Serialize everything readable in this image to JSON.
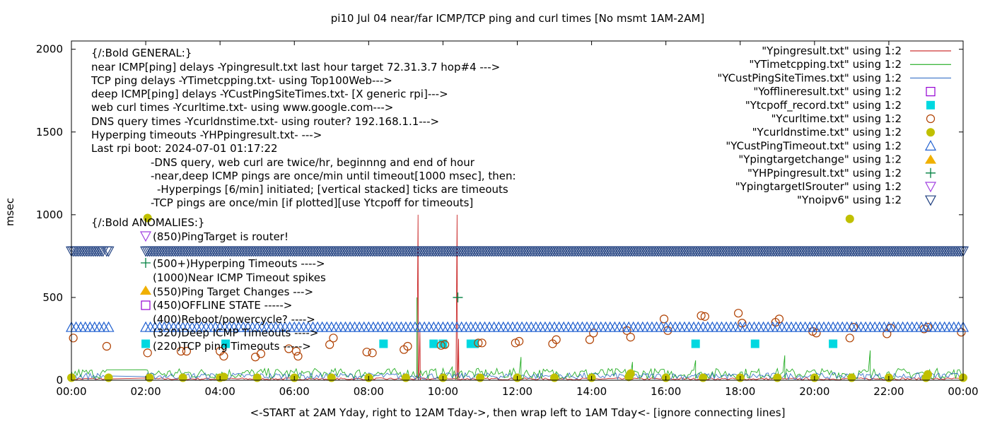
{
  "chart_data": {
    "type": "line",
    "title": "pi10 Jul 04  near/far ICMP/TCP ping and curl times [No msmt 1AM-2AM]",
    "xlabel": "<-START at 2AM Yday, right to 12AM Tday->, then wrap left to 1AM Tday<- [ignore connecting lines]",
    "ylabel": "msec",
    "xlim": [
      0,
      24
    ],
    "ylim": [
      0,
      2050
    ],
    "x_ticks": [
      {
        "v": 0,
        "label": "00:00"
      },
      {
        "v": 2,
        "label": "02:00"
      },
      {
        "v": 4,
        "label": "04:00"
      },
      {
        "v": 6,
        "label": "06:00"
      },
      {
        "v": 8,
        "label": "08:00"
      },
      {
        "v": 10,
        "label": "10:00"
      },
      {
        "v": 12,
        "label": "12:00"
      },
      {
        "v": 14,
        "label": "14:00"
      },
      {
        "v": 16,
        "label": "16:00"
      },
      {
        "v": 18,
        "label": "18:00"
      },
      {
        "v": 20,
        "label": "20:00"
      },
      {
        "v": 22,
        "label": "22:00"
      },
      {
        "v": 24,
        "label": "00:00"
      }
    ],
    "y_ticks": [
      {
        "v": 0,
        "label": "0"
      },
      {
        "v": 500,
        "label": "500"
      },
      {
        "v": 1000,
        "label": "1000"
      },
      {
        "v": 1500,
        "label": "1500"
      },
      {
        "v": 2000,
        "label": "2000"
      }
    ],
    "annotations": [
      "{/:Bold GENERAL:}",
      "near ICMP[ping] delays -Ypingresult.txt last hour target 72.31.3.7 hop#4 --->",
      "TCP ping delays -YTimetcpping.txt- using Top100Web--->",
      "deep ICMP[ping] delays -YCustPingSiteTimes.txt- [X generic rpi]--->",
      "web curl times -Ycurltime.txt- using www.google.com--->",
      "DNS query times -Ycurldnstime.txt- using router? 192.168.1.1--->",
      "Hyperping timeouts -YHPpingresult.txt- --->",
      "Last rpi boot: 2024-07-01 01:17:22",
      "-DNS query, web curl are twice/hr, beginnng and end of hour",
      "-near,deep ICMP pings are once/min until timeout[1000 msec], then:",
      "-Hyperpings [6/min] initiated; [vertical stacked] ticks are timeouts",
      "-TCP pings are once/min [if plotted][use Ytcpoff for timeouts]",
      "{/:Bold ANOMALIES:}",
      "(850)PingTarget is router!",
      "(500+)Hyperping Timeouts ---->",
      "(1000)Near ICMP Timeout spikes",
      "(550)Ping Target Changes --->",
      "(450)OFFLINE STATE ----->",
      "(400)Reboot/powercycle? ---->",
      "(320)Deep ICMP Timeouts ---->",
      "(220)TCP ping Timeouts ----->"
    ],
    "legend": [
      {
        "label": "\"Ypingresult.txt\" using 1:2",
        "symbol": "line",
        "color": "#c00000"
      },
      {
        "label": "\"YTimetcpping.txt\" using 1:2",
        "symbol": "line",
        "color": "#00a000"
      },
      {
        "label": "\"YCustPingSiteTimes.txt\" using 1:2",
        "symbol": "line",
        "color": "#2060c0"
      },
      {
        "label": "\"Yofflineresult.txt\" using 1:2",
        "symbol": "open-square",
        "color": "#9400d3"
      },
      {
        "label": "\"Ytcpoff_record.txt\" using 1:2",
        "symbol": "filled-square",
        "color": "#00d8e0"
      },
      {
        "label": "\"Ycurltime.txt\" using 1:2",
        "symbol": "open-circle",
        "color": "#b04000"
      },
      {
        "label": "\"Ycurldnstime.txt\" using 1:2",
        "symbol": "filled-circle",
        "color": "#c0c000"
      },
      {
        "label": "\"YCustPingTimeout.txt\" using 1:2",
        "symbol": "open-triangle-up",
        "color": "#2060d0"
      },
      {
        "label": "\"Ypingtargetchange\" using 1:2",
        "symbol": "filled-triangle-up",
        "color": "#f0b000"
      },
      {
        "label": "\"YHPpingresult.txt\" using 1:2",
        "symbol": "plus",
        "color": "#008040"
      },
      {
        "label": "\"YpingtargetISrouter\" using 1:2",
        "symbol": "open-triangle-down",
        "color": "#a040e0"
      },
      {
        "label": "\"Ynoipv6\" using 1:2",
        "symbol": "open-triangle-down",
        "color": "#204080"
      }
    ],
    "legend_position": "top-right",
    "grid": false,
    "series": [
      {
        "name": "\"Ypingresult.txt\" using 1:2",
        "color": "#c00000",
        "baseline": 8,
        "spikes": [
          [
            9.33,
            1000
          ],
          [
            9.38,
            300
          ],
          [
            10.38,
            1000
          ],
          [
            10.42,
            250
          ]
        ]
      },
      {
        "name": "\"YTimetcpping.txt\" using 1:2",
        "color": "#00a000",
        "baseline": 40,
        "spikes": [
          [
            9.3,
            500
          ],
          [
            10.25,
            80
          ],
          [
            12.1,
            140
          ],
          [
            15.1,
            110
          ],
          [
            16.8,
            120
          ],
          [
            19.2,
            150
          ],
          [
            21.5,
            180
          ]
        ]
      },
      {
        "name": "\"YCustPingSiteTimes.txt\" using 1:2",
        "color": "#2060c0",
        "baseline": 25,
        "spikes": []
      },
      {
        "name": "\"Yofflineresult.txt\" using 1:2",
        "points": []
      },
      {
        "name": "\"Ytcpoff_record.txt\" using 1:2",
        "points": [
          [
            2.0,
            220
          ],
          [
            4.15,
            220
          ],
          [
            8.4,
            220
          ],
          [
            9.75,
            220
          ],
          [
            10.0,
            220
          ],
          [
            10.75,
            220
          ],
          [
            10.85,
            220
          ],
          [
            16.8,
            220
          ],
          [
            18.4,
            220
          ],
          [
            20.5,
            220
          ]
        ]
      },
      {
        "name": "\"Ycurltime.txt\" using 1:2",
        "points": [
          [
            0.05,
            255
          ],
          [
            0.95,
            205
          ],
          [
            2.05,
            165
          ],
          [
            2.95,
            175
          ],
          [
            3.1,
            175
          ],
          [
            4.0,
            175
          ],
          [
            4.1,
            145
          ],
          [
            4.95,
            140
          ],
          [
            5.1,
            160
          ],
          [
            5.85,
            190
          ],
          [
            6.05,
            175
          ],
          [
            6.1,
            145
          ],
          [
            6.95,
            215
          ],
          [
            7.05,
            255
          ],
          [
            7.95,
            170
          ],
          [
            8.1,
            165
          ],
          [
            8.95,
            185
          ],
          [
            9.05,
            205
          ],
          [
            9.95,
            210
          ],
          [
            10.05,
            215
          ],
          [
            10.95,
            225
          ],
          [
            11.05,
            225
          ],
          [
            11.95,
            225
          ],
          [
            12.05,
            235
          ],
          [
            12.95,
            220
          ],
          [
            13.05,
            245
          ],
          [
            13.95,
            245
          ],
          [
            14.05,
            285
          ],
          [
            14.95,
            300
          ],
          [
            15.05,
            260
          ],
          [
            15.95,
            370
          ],
          [
            16.05,
            300
          ],
          [
            16.95,
            390
          ],
          [
            17.05,
            385
          ],
          [
            17.95,
            405
          ],
          [
            18.05,
            345
          ],
          [
            18.95,
            350
          ],
          [
            19.05,
            370
          ],
          [
            19.95,
            295
          ],
          [
            20.05,
            285
          ],
          [
            20.95,
            255
          ],
          [
            21.05,
            320
          ],
          [
            21.95,
            280
          ],
          [
            22.05,
            315
          ],
          [
            22.95,
            310
          ],
          [
            23.05,
            320
          ],
          [
            23.95,
            290
          ]
        ]
      },
      {
        "name": "\"Ycurldnstime.txt\" using 1:2",
        "points": [
          [
            0.0,
            15
          ],
          [
            1.0,
            15
          ],
          [
            2.05,
            980
          ],
          [
            2.1,
            15
          ],
          [
            3.0,
            15
          ],
          [
            4.0,
            15
          ],
          [
            4.1,
            20
          ],
          [
            5.0,
            15
          ],
          [
            6.0,
            15
          ],
          [
            7.0,
            15
          ],
          [
            8.0,
            15
          ],
          [
            9.0,
            15
          ],
          [
            10.0,
            15
          ],
          [
            11.0,
            15
          ],
          [
            12.0,
            15
          ],
          [
            13.0,
            15
          ],
          [
            14.0,
            15
          ],
          [
            15.0,
            20
          ],
          [
            15.05,
            40
          ],
          [
            16.0,
            15
          ],
          [
            17.0,
            15
          ],
          [
            18.0,
            15
          ],
          [
            19.0,
            15
          ],
          [
            20.0,
            15
          ],
          [
            20.95,
            975
          ],
          [
            21.0,
            15
          ],
          [
            22.0,
            15
          ],
          [
            23.0,
            15
          ],
          [
            23.05,
            35
          ],
          [
            24.0,
            15
          ]
        ]
      },
      {
        "name": "\"YCustPingTimeout.txt\" using 1:2",
        "value": 320,
        "segments": [
          [
            0.0,
            1.0
          ],
          [
            2.0,
            24.0
          ]
        ],
        "step": 0.125
      },
      {
        "name": "\"Ypingtargetchange\" using 1:2",
        "points": []
      },
      {
        "name": "\"YHPpingresult.txt\" using 1:2",
        "points": [
          [
            10.4,
            500
          ]
        ]
      },
      {
        "name": "\"YpingtargetISrouter\" using 1:2",
        "points": []
      },
      {
        "name": "\"Ynoipv6\" using 1:2",
        "value": 780,
        "segments": [
          [
            0.0,
            0.85
          ],
          [
            0.95,
            1.0
          ],
          [
            2.0,
            24.0
          ]
        ],
        "step": 0.05
      }
    ]
  }
}
